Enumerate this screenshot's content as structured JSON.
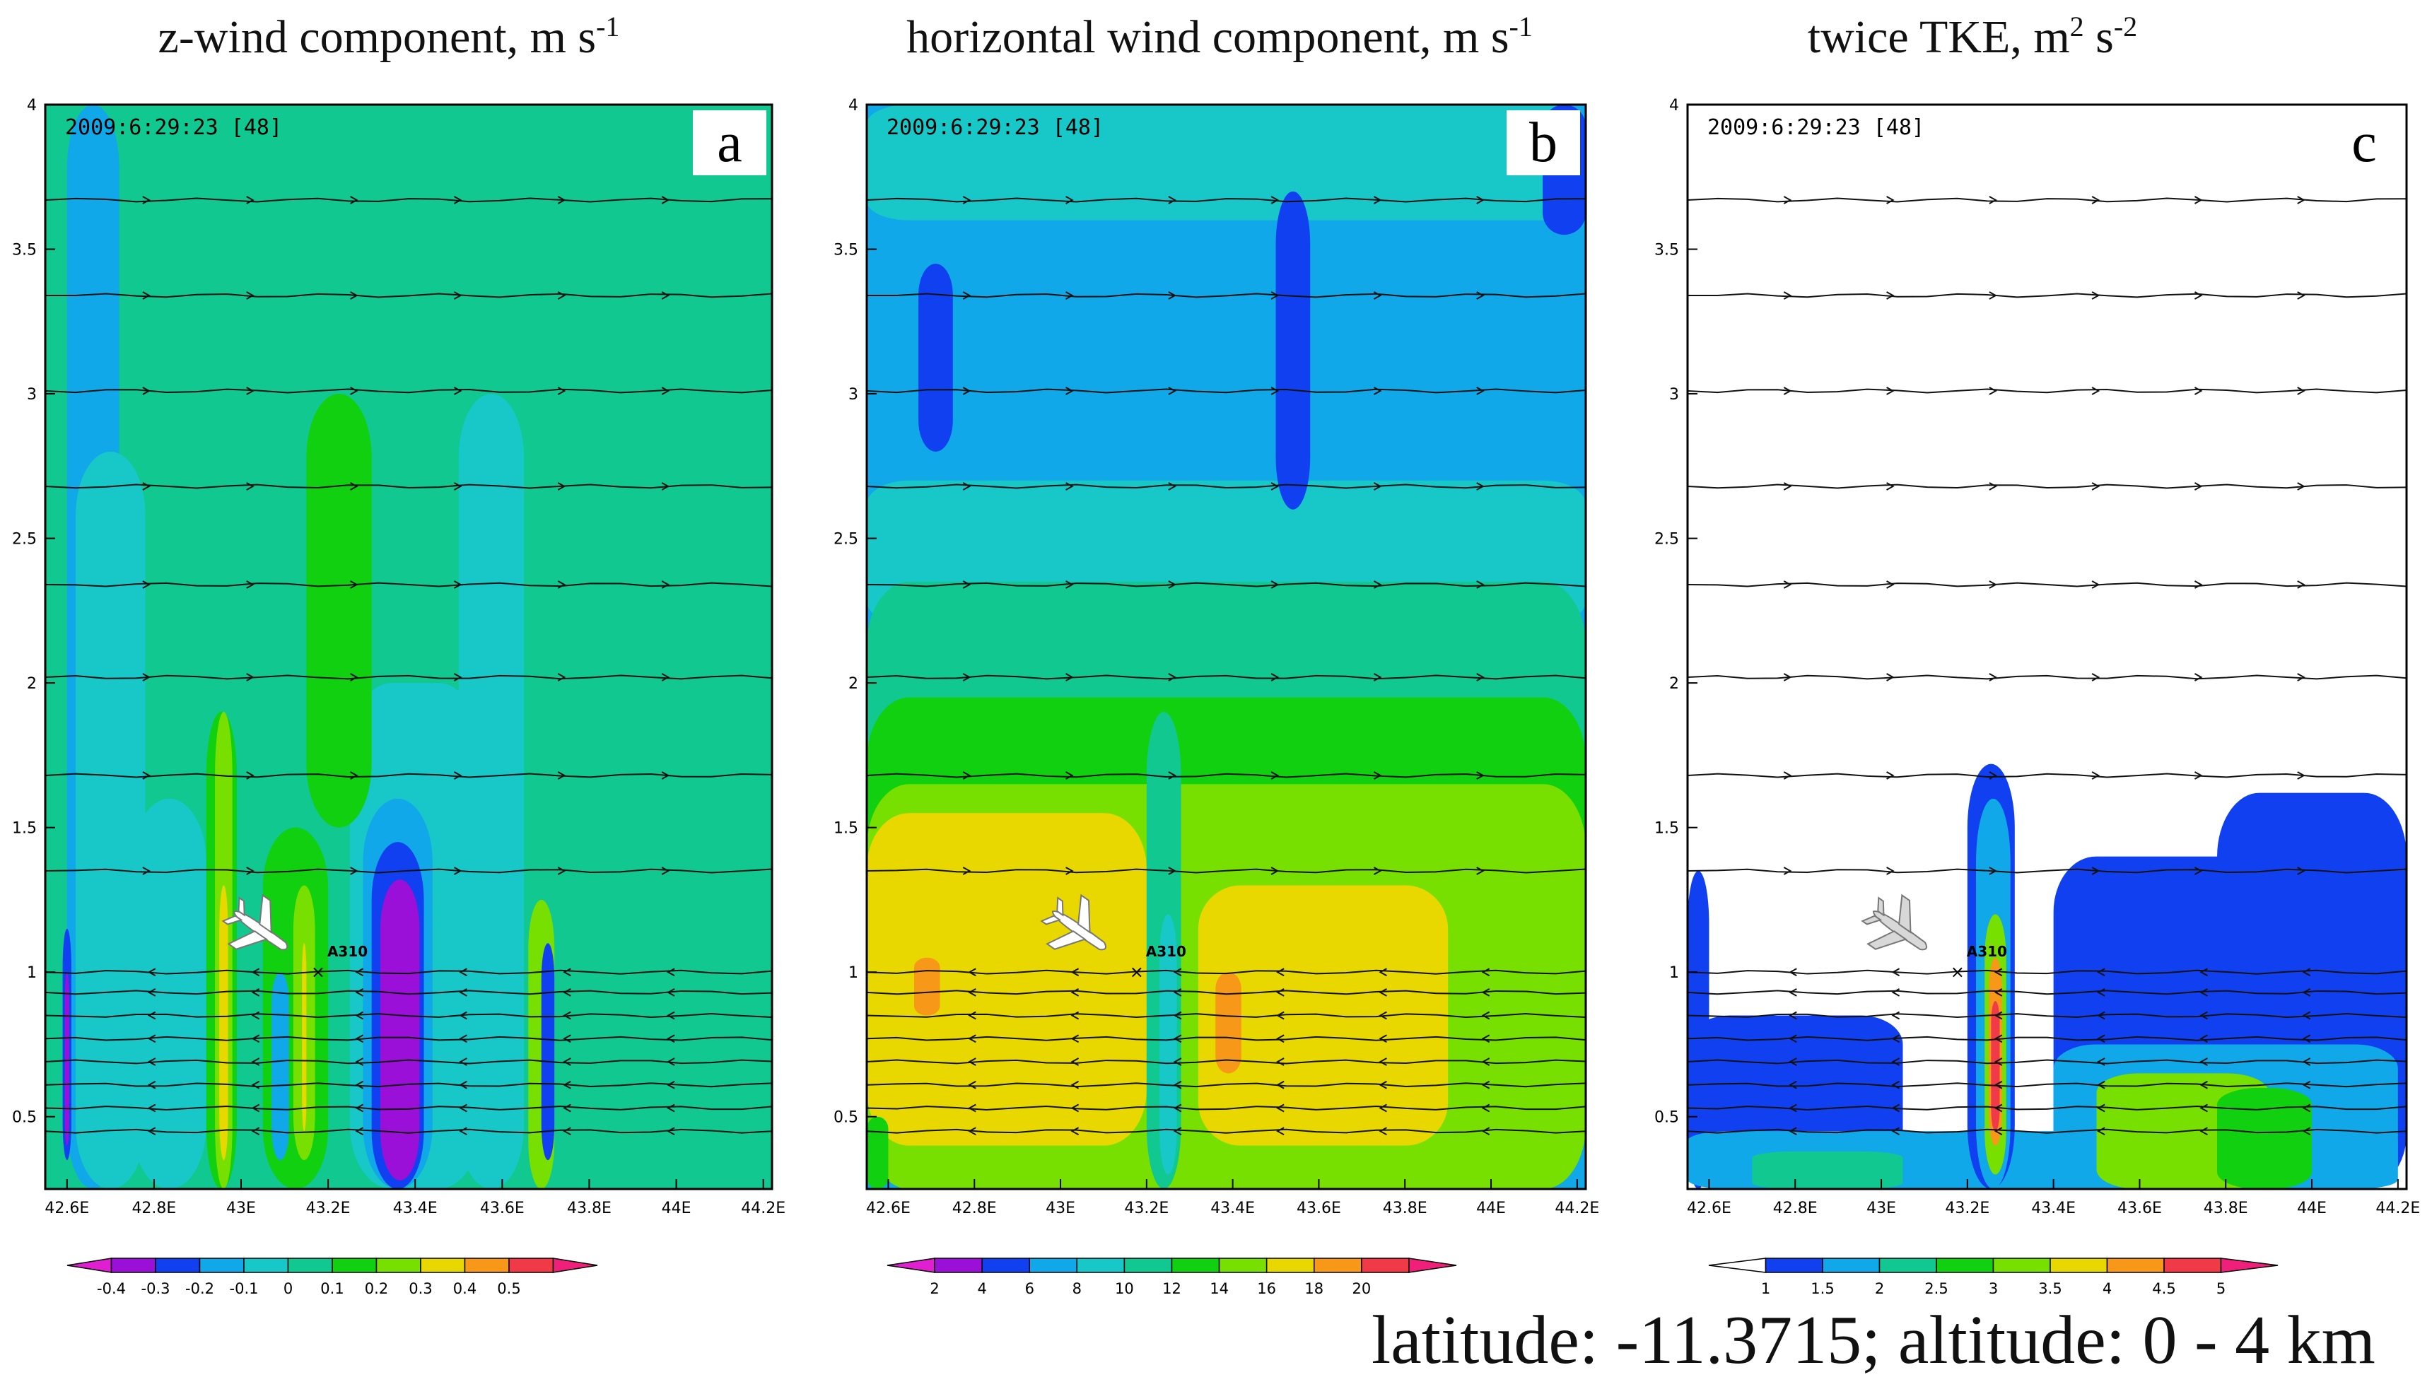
{
  "figure": {
    "caption": "latitude: -11.3715; altitude: 0 - 4 km"
  },
  "colors": {
    "magenta": "#e01fd0",
    "purple": "#9a10d8",
    "blue": "#1040f0",
    "sky": "#10a8e8",
    "cyan": "#18c8c8",
    "teal": "#10c890",
    "green": "#10d010",
    "lime": "#78e000",
    "yellow": "#e8d800",
    "orange": "#f89818",
    "red": "#f03a48",
    "pink": "#f0207a",
    "white": "#ffffff"
  },
  "chart_data": [
    {
      "type": "heatmap",
      "panel": "a",
      "title": "z-wind component, m s",
      "title_sup": "-1",
      "timestamp": "2009:6:29:23 [48]",
      "flight_label": "A310",
      "xlabel": "",
      "ylabel": "",
      "xlim": [
        42.55,
        44.22
      ],
      "ylim": [
        0.25,
        4
      ],
      "x_ticks": [
        42.6,
        42.8,
        43.0,
        43.2,
        43.4,
        43.6,
        43.8,
        44.0,
        44.2
      ],
      "x_tick_labels": [
        "42.6E",
        "42.8E",
        "43E",
        "43.2E",
        "43.4E",
        "43.6E",
        "43.8E",
        "44E",
        "44.2E"
      ],
      "y_ticks": [
        0.5,
        1,
        1.5,
        2,
        2.5,
        3,
        3.5,
        4
      ],
      "y_tick_labels": [
        "0.5",
        "1",
        "1.5",
        "2",
        "2.5",
        "3",
        "3.5",
        "4"
      ],
      "colorbar": {
        "labels": [
          "-0.4",
          "-0.3",
          "-0.2",
          "-0.1",
          "0",
          "0.1",
          "0.2",
          "0.3",
          "0.4",
          "0.5"
        ],
        "colors": [
          "magenta",
          "purple",
          "blue",
          "sky",
          "cyan",
          "teal",
          "green",
          "lime",
          "yellow",
          "orange",
          "red",
          "pink"
        ]
      },
      "background_value": 0.05,
      "features": [
        {
          "value": -0.15,
          "x": [
            42.6,
            42.72
          ],
          "y": [
            0.25,
            4
          ]
        },
        {
          "value": -0.05,
          "x": [
            42.62,
            42.78
          ],
          "y": [
            0.25,
            2.8
          ]
        },
        {
          "value": -0.1,
          "x": [
            42.75,
            42.92
          ],
          "y": [
            0.25,
            1.6
          ]
        },
        {
          "value": -0.05,
          "x": [
            43.25,
            43.55
          ],
          "y": [
            0.25,
            2.0
          ]
        },
        {
          "value": -0.05,
          "x": [
            43.5,
            43.65
          ],
          "y": [
            0.25,
            3.0
          ]
        },
        {
          "value": 0.15,
          "x": [
            43.15,
            43.3
          ],
          "y": [
            1.5,
            3.0
          ]
        },
        {
          "value": 0.15,
          "x": [
            42.92,
            42.99
          ],
          "y": [
            0.25,
            1.9
          ]
        },
        {
          "value": 0.15,
          "x": [
            43.05,
            43.2
          ],
          "y": [
            0.25,
            1.5
          ]
        },
        {
          "value": 0.25,
          "x": [
            42.94,
            42.98
          ],
          "y": [
            0.25,
            1.9
          ]
        },
        {
          "value": 0.35,
          "x": [
            42.95,
            42.97
          ],
          "y": [
            0.35,
            1.3
          ]
        },
        {
          "value": 0.25,
          "x": [
            43.12,
            43.17
          ],
          "y": [
            0.35,
            1.3
          ]
        },
        {
          "value": 0.35,
          "x": [
            43.14,
            43.15
          ],
          "y": [
            0.45,
            1.1
          ]
        },
        {
          "value": -0.15,
          "x": [
            43.07,
            43.11
          ],
          "y": [
            0.35,
            1.0
          ]
        },
        {
          "value": -0.15,
          "x": [
            43.28,
            43.44
          ],
          "y": [
            0.25,
            1.6
          ]
        },
        {
          "value": -0.25,
          "x": [
            43.3,
            43.42
          ],
          "y": [
            0.25,
            1.45
          ]
        },
        {
          "value": -0.35,
          "x": [
            43.32,
            43.41
          ],
          "y": [
            0.28,
            1.32
          ]
        },
        {
          "value": 0.25,
          "x": [
            43.66,
            43.72
          ],
          "y": [
            0.25,
            1.25
          ]
        },
        {
          "value": -0.25,
          "x": [
            43.69,
            43.72
          ],
          "y": [
            0.35,
            1.1
          ]
        },
        {
          "value": -0.25,
          "x": [
            42.59,
            42.61
          ],
          "y": [
            0.35,
            1.15
          ]
        },
        {
          "value": -0.35,
          "x": [
            42.595,
            42.605
          ],
          "y": [
            0.4,
            1.0
          ]
        }
      ]
    },
    {
      "type": "heatmap",
      "panel": "b",
      "title": "horizontal wind component, m s",
      "title_sup": "-1",
      "timestamp": "2009:6:29:23 [48]",
      "flight_label": "A310",
      "xlabel": "",
      "ylabel": "",
      "xlim": [
        42.55,
        44.22
      ],
      "ylim": [
        0.25,
        4
      ],
      "x_ticks": [
        42.6,
        42.8,
        43.0,
        43.2,
        43.4,
        43.6,
        43.8,
        44.0,
        44.2
      ],
      "x_tick_labels": [
        "42.6E",
        "42.8E",
        "43E",
        "43.2E",
        "43.4E",
        "43.6E",
        "43.8E",
        "44E",
        "44.2E"
      ],
      "y_ticks": [
        0.5,
        1,
        1.5,
        2,
        2.5,
        3,
        3.5,
        4
      ],
      "y_tick_labels": [
        "0.5",
        "1",
        "1.5",
        "2",
        "2.5",
        "3",
        "3.5",
        "4"
      ],
      "colorbar": {
        "labels": [
          "2",
          "4",
          "6",
          "8",
          "10",
          "12",
          "14",
          "16",
          "18",
          "20"
        ],
        "colors": [
          "magenta",
          "purple",
          "blue",
          "sky",
          "cyan",
          "teal",
          "green",
          "lime",
          "yellow",
          "orange",
          "red",
          "pink"
        ]
      },
      "background_value": 7,
      "features": [
        {
          "value": 9,
          "x": [
            42.55,
            44.22
          ],
          "y": [
            3.6,
            4.0
          ]
        },
        {
          "value": 9,
          "x": [
            42.55,
            44.22
          ],
          "y": [
            2.2,
            2.7
          ]
        },
        {
          "value": 11,
          "x": [
            42.55,
            44.22
          ],
          "y": [
            0.25,
            2.35
          ]
        },
        {
          "value": 13,
          "x": [
            42.55,
            44.22
          ],
          "y": [
            0.25,
            1.95
          ]
        },
        {
          "value": 15,
          "x": [
            42.55,
            44.22
          ],
          "y": [
            0.25,
            1.65
          ]
        },
        {
          "value": 17,
          "x": [
            42.55,
            43.2
          ],
          "y": [
            0.4,
            1.55
          ]
        },
        {
          "value": 17,
          "x": [
            43.32,
            43.9
          ],
          "y": [
            0.4,
            1.3
          ]
        },
        {
          "value": 19,
          "x": [
            42.66,
            42.72
          ],
          "y": [
            0.85,
            1.05
          ]
        },
        {
          "value": 19,
          "x": [
            43.36,
            43.42
          ],
          "y": [
            0.65,
            1.0
          ]
        },
        {
          "value": 11,
          "x": [
            43.2,
            43.28
          ],
          "y": [
            0.25,
            1.9
          ]
        },
        {
          "value": 9,
          "x": [
            43.23,
            43.27
          ],
          "y": [
            0.3,
            1.2
          ]
        },
        {
          "value": 5,
          "x": [
            42.67,
            42.75
          ],
          "y": [
            2.8,
            3.45
          ]
        },
        {
          "value": 5,
          "x": [
            43.5,
            43.58
          ],
          "y": [
            2.6,
            3.7
          ]
        },
        {
          "value": 5,
          "x": [
            44.12,
            44.22
          ],
          "y": [
            3.55,
            4.0
          ]
        },
        {
          "value": 13,
          "x": [
            42.55,
            42.6
          ],
          "y": [
            0.25,
            0.5
          ]
        }
      ]
    },
    {
      "type": "heatmap",
      "panel": "c",
      "title": "twice TKE, m",
      "title_sup": "2",
      "title_mid": " s",
      "title_sup2": "-2",
      "timestamp": "2009:6:29:23 [48]",
      "flight_label": "A310",
      "xlabel": "",
      "ylabel": "",
      "xlim": [
        42.55,
        44.22
      ],
      "ylim": [
        0.25,
        4
      ],
      "x_ticks": [
        42.6,
        42.8,
        43.0,
        43.2,
        43.4,
        43.6,
        43.8,
        44.0,
        44.2
      ],
      "x_tick_labels": [
        "42.6E",
        "42.8E",
        "43E",
        "43.2E",
        "43.4E",
        "43.6E",
        "43.8E",
        "44E",
        "44.2E"
      ],
      "y_ticks": [
        0.5,
        1,
        1.5,
        2,
        2.5,
        3,
        3.5,
        4
      ],
      "y_tick_labels": [
        "0.5",
        "1",
        "1.5",
        "2",
        "2.5",
        "3",
        "3.5",
        "4"
      ],
      "colorbar": {
        "labels": [
          "1",
          "1.5",
          "2",
          "2.5",
          "3",
          "3.5",
          "4",
          "4.5",
          "5"
        ],
        "colors": [
          "white",
          "blue",
          "sky",
          "teal",
          "green",
          "lime",
          "yellow",
          "orange",
          "red",
          "pink"
        ]
      },
      "background_value": 0.5,
      "features": [
        {
          "value": 1.25,
          "x": [
            42.55,
            43.05
          ],
          "y": [
            0.25,
            0.85
          ]
        },
        {
          "value": 1.25,
          "x": [
            42.55,
            42.6
          ],
          "y": [
            0.25,
            1.35
          ]
        },
        {
          "value": 1.25,
          "x": [
            43.4,
            44.22
          ],
          "y": [
            0.25,
            1.4
          ]
        },
        {
          "value": 1.25,
          "x": [
            43.78,
            44.22
          ],
          "y": [
            0.25,
            1.62
          ]
        },
        {
          "value": 1.75,
          "x": [
            42.55,
            44.2
          ],
          "y": [
            0.25,
            0.45
          ]
        },
        {
          "value": 1.75,
          "x": [
            43.4,
            44.2
          ],
          "y": [
            0.25,
            0.75
          ]
        },
        {
          "value": 2.25,
          "x": [
            42.7,
            43.05
          ],
          "y": [
            0.25,
            0.38
          ]
        },
        {
          "value": 3.25,
          "x": [
            43.5,
            43.9
          ],
          "y": [
            0.25,
            0.65
          ]
        },
        {
          "value": 2.75,
          "x": [
            43.78,
            44.0
          ],
          "y": [
            0.25,
            0.6
          ]
        },
        {
          "value": 1.25,
          "x": [
            43.2,
            43.31
          ],
          "y": [
            0.25,
            1.72
          ]
        },
        {
          "value": 1.75,
          "x": [
            43.22,
            43.3
          ],
          "y": [
            0.25,
            1.6
          ]
        },
        {
          "value": 3.25,
          "x": [
            43.24,
            43.29
          ],
          "y": [
            0.3,
            1.2
          ]
        },
        {
          "value": 4.25,
          "x": [
            43.25,
            43.28
          ],
          "y": [
            0.4,
            1.05
          ]
        },
        {
          "value": 4.75,
          "x": [
            43.255,
            43.275
          ],
          "y": [
            0.45,
            0.9
          ]
        }
      ]
    }
  ]
}
